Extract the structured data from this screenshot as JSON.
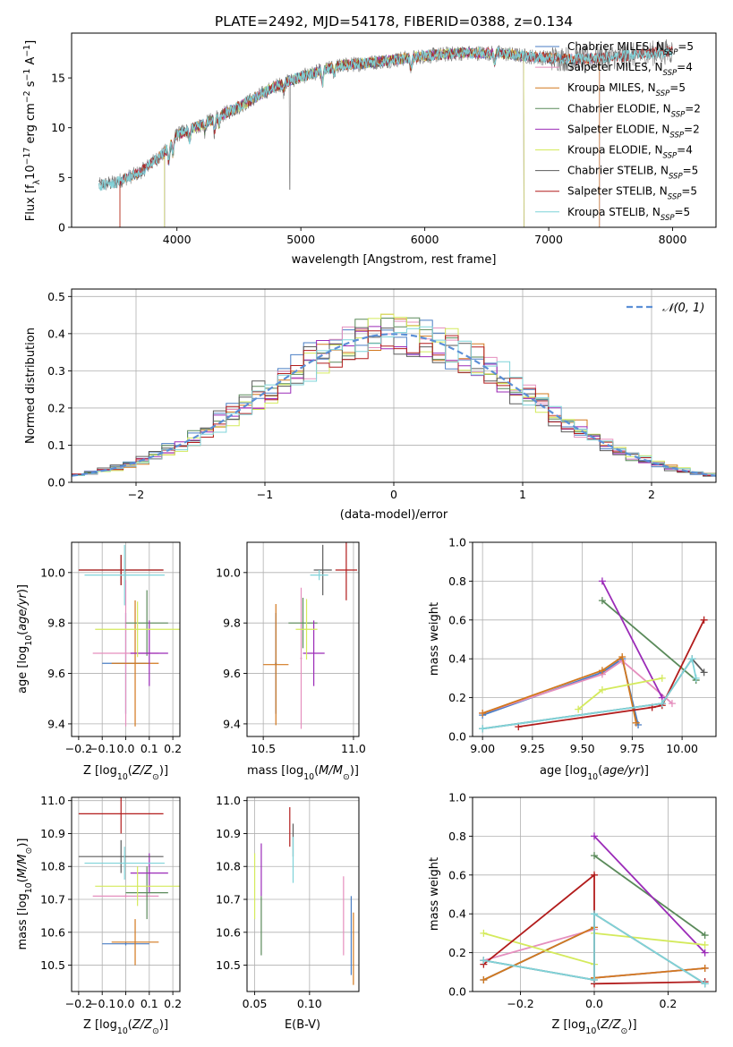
{
  "colors": {
    "Chabrier MILES": "#4a7ec4",
    "Salpeter MILES": "#e58fbe",
    "Kroupa MILES": "#d2781e",
    "Chabrier ELODIE": "#5a8a5a",
    "Salpeter ELODIE": "#9b2bb8",
    "Kroupa ELODIE": "#d4ea5c",
    "Chabrier STELIB": "#5b5b5b",
    "Salpeter STELIB": "#b21c1c",
    "Kroupa STELIB": "#7fd3d9",
    "normal": "#5b8fd6",
    "spectrum_gray": "#7a7a7a"
  },
  "chart_data": [
    {
      "id": "spectrum",
      "type": "line",
      "title": "PLATE=2492, MJD=54178, FIBERID=0388, z=0.134",
      "xlabel": "wavelength [Angstrom, rest frame]",
      "ylabel_parts": [
        "Flux [f",
        "λ",
        "10",
        "−17",
        " erg cm",
        "−2",
        " s",
        "−1",
        " A",
        "−1",
        "]"
      ],
      "xlim": [
        3150,
        8350
      ],
      "ylim": [
        0,
        19.5
      ],
      "xticks": [
        4000,
        5000,
        6000,
        7000,
        8000
      ],
      "yticks": [
        0,
        5,
        10,
        15
      ],
      "grid": false,
      "legend_position": "top-right",
      "legend": [
        {
          "label": "Chabrier MILES, N",
          "sub": "SSP",
          "suffix": "=5"
        },
        {
          "label": "Salpeter MILES, N",
          "sub": "SSP",
          "suffix": "=4"
        },
        {
          "label": "Kroupa MILES, N",
          "sub": "SSP",
          "suffix": "=5"
        },
        {
          "label": "Chabrier ELODIE, N",
          "sub": "SSP",
          "suffix": "=2"
        },
        {
          "label": "Salpeter ELODIE, N",
          "sub": "SSP",
          "suffix": "=2"
        },
        {
          "label": "Kroupa ELODIE, N",
          "sub": "SSP",
          "suffix": "=4"
        },
        {
          "label": "Chabrier STELIB, N",
          "sub": "SSP",
          "suffix": "=5"
        },
        {
          "label": "Salpeter STELIB, N",
          "sub": "SSP",
          "suffix": "=5"
        },
        {
          "label": "Kroupa STELIB, N",
          "sub": "SSP",
          "suffix": "=5"
        }
      ],
      "continuum_knots": {
        "x": [
          3370,
          3500,
          3700,
          3900,
          4000,
          4200,
          4500,
          4800,
          5000,
          5300,
          5600,
          6000,
          6300,
          6600,
          6800,
          7000,
          7200,
          7400,
          7700,
          8000
        ],
        "y": [
          4.2,
          4.5,
          5.5,
          7.5,
          9.3,
          10.3,
          12.1,
          14.2,
          15.1,
          16.2,
          16.6,
          17.2,
          17.5,
          17.5,
          17.2,
          17.0,
          16.9,
          17.0,
          17.3,
          17.7
        ]
      },
      "data_range": [
        3370,
        8000
      ],
      "model_coverage": {
        "Chabrier MILES": [
          3540,
          7410
        ],
        "Salpeter MILES": [
          3540,
          7410
        ],
        "Kroupa MILES": [
          3540,
          7410
        ],
        "Chabrier ELODIE": [
          3900,
          6800
        ],
        "Salpeter ELODIE": [
          3900,
          6800
        ],
        "Kroupa ELODIE": [
          3900,
          6800
        ],
        "Chabrier STELIB": [
          3370,
          8000
        ],
        "Salpeter STELIB": [
          3540,
          8000
        ],
        "Kroupa STELIB": [
          3370,
          8000
        ]
      }
    },
    {
      "id": "residuals",
      "type": "step",
      "xlabel": "(data-model)/error",
      "ylabel": "Normed distribution",
      "xlim": [
        -2.5,
        2.5
      ],
      "ylim": [
        0,
        0.52
      ],
      "xticks": [
        -2,
        -1,
        0,
        1,
        2
      ],
      "yticks": [
        0.0,
        0.1,
        0.2,
        0.3,
        0.4,
        0.5
      ],
      "grid": true,
      "legend_position": "top-right",
      "legend": [
        {
          "label": "𝒩(0, 1)"
        }
      ],
      "bin_width": 0.1
    },
    {
      "id": "age_vs_Z",
      "type": "errorbar",
      "xlabel": "Z [log10(Z/Z⊙)]",
      "ylabel": "age  [log10(age/yr)]",
      "xlim": [
        -0.23,
        0.23
      ],
      "ylim": [
        9.35,
        10.12
      ],
      "xticks": [
        -0.2,
        -0.1,
        0.0,
        0.1,
        0.2
      ],
      "yticks": [
        9.4,
        9.6,
        9.8,
        10.0
      ],
      "grid": true,
      "points": [
        {
          "model": "Chabrier MILES",
          "x": 0.0,
          "y": 9.64,
          "xerr": 0.1,
          "yerr": 0.2
        },
        {
          "model": "Salpeter MILES",
          "x": 0.0,
          "y": 9.68,
          "xerr": 0.14,
          "yerr": 0.29
        },
        {
          "model": "Kroupa MILES",
          "x": 0.04,
          "y": 9.64,
          "xerr": 0.1,
          "yerr": 0.25
        },
        {
          "model": "Chabrier ELODIE",
          "x": 0.09,
          "y": 9.8,
          "xerr": 0.09,
          "yerr": 0.13
        },
        {
          "model": "Salpeter ELODIE",
          "x": 0.1,
          "y": 9.68,
          "xerr": 0.08,
          "yerr": 0.13
        },
        {
          "model": "Kroupa ELODIE",
          "x": 0.05,
          "y": 9.775,
          "xerr": 0.18,
          "yerr": 0.11
        },
        {
          "model": "Chabrier STELIB",
          "x": -0.02,
          "y": 10.01,
          "xerr": 0.18,
          "yerr": 0.06
        },
        {
          "model": "Salpeter STELIB",
          "x": -0.02,
          "y": 10.01,
          "xerr": 0.18,
          "yerr": 0.06
        },
        {
          "model": "Kroupa STELIB",
          "x": -0.005,
          "y": 9.99,
          "xerr": 0.17,
          "yerr": 0.12
        }
      ]
    },
    {
      "id": "age_vs_mass",
      "type": "errorbar",
      "xlabel": "mass [log10(M/M⊙)]",
      "xlim": [
        10.41,
        11.03
      ],
      "ylim": [
        9.35,
        10.12
      ],
      "xticks": [
        10.5,
        11.0
      ],
      "yticks": [
        9.4,
        9.6,
        9.8,
        10.0
      ],
      "grid": true,
      "points": [
        {
          "model": "Chabrier MILES",
          "x": 10.57,
          "y": 9.64,
          "xerr": 0.005,
          "yerr": 0.2
        },
        {
          "model": "Salpeter MILES",
          "x": 10.71,
          "y": 9.66,
          "xerr": 0.005,
          "yerr": 0.28
        },
        {
          "model": "Kroupa MILES",
          "x": 10.57,
          "y": 9.635,
          "xerr": 0.07,
          "yerr": 0.24
        },
        {
          "model": "Chabrier ELODIE",
          "x": 10.72,
          "y": 9.8,
          "xerr": 0.08,
          "yerr": 0.1
        },
        {
          "model": "Salpeter ELODIE",
          "x": 10.78,
          "y": 9.68,
          "xerr": 0.06,
          "yerr": 0.13
        },
        {
          "model": "Kroupa ELODIE",
          "x": 10.74,
          "y": 9.775,
          "xerr": 0.06,
          "yerr": 0.12
        },
        {
          "model": "Chabrier STELIB",
          "x": 10.83,
          "y": 10.01,
          "xerr": 0.05,
          "yerr": 0.1
        },
        {
          "model": "Salpeter STELIB",
          "x": 10.96,
          "y": 10.01,
          "xerr": 0.06,
          "yerr": 0.12
        },
        {
          "model": "Kroupa STELIB",
          "x": 10.81,
          "y": 9.99,
          "xerr": 0.05,
          "yerr": 0.02
        }
      ]
    },
    {
      "id": "weight_vs_age",
      "type": "line-marker",
      "xlabel": "age  [log10(age/yr)]",
      "ylabel": "mass weight",
      "xlim": [
        8.95,
        10.17
      ],
      "ylim": [
        0,
        1.0
      ],
      "xticks": [
        9.0,
        9.25,
        9.5,
        9.75,
        10.0
      ],
      "yticks": [
        0.0,
        0.2,
        0.4,
        0.6,
        0.8,
        1.0
      ],
      "grid": true,
      "series": [
        {
          "model": "Chabrier MILES",
          "x": [
            9.0,
            9.6,
            9.7,
            9.78
          ],
          "y": [
            0.11,
            0.33,
            0.4,
            0.06
          ]
        },
        {
          "model": "Salpeter MILES",
          "x": [
            9.0,
            9.6,
            9.7,
            9.95
          ],
          "y": [
            0.12,
            0.32,
            0.39,
            0.17
          ]
        },
        {
          "model": "Kroupa MILES",
          "x": [
            9.0,
            9.6,
            9.7,
            9.77
          ],
          "y": [
            0.12,
            0.34,
            0.41,
            0.07
          ]
        },
        {
          "model": "Chabrier ELODIE",
          "x": [
            9.6,
            10.07
          ],
          "y": [
            0.7,
            0.29
          ]
        },
        {
          "model": "Salpeter ELODIE",
          "x": [
            9.6,
            9.9
          ],
          "y": [
            0.8,
            0.2
          ]
        },
        {
          "model": "Kroupa ELODIE",
          "x": [
            9.48,
            9.6,
            9.9
          ],
          "y": [
            0.14,
            0.24,
            0.3
          ]
        },
        {
          "model": "Chabrier STELIB",
          "x": [
            9.0,
            9.9,
            10.05,
            10.11
          ],
          "y": [
            0.04,
            0.17,
            0.4,
            0.33
          ]
        },
        {
          "model": "Salpeter STELIB",
          "x": [
            9.18,
            9.85,
            9.9,
            10.11
          ],
          "y": [
            0.05,
            0.15,
            0.16,
            0.6
          ]
        },
        {
          "model": "Kroupa STELIB",
          "x": [
            9.0,
            9.9,
            10.05,
            10.07
          ],
          "y": [
            0.04,
            0.17,
            0.4,
            0.3
          ]
        }
      ]
    },
    {
      "id": "mass_vs_Z",
      "type": "errorbar",
      "xlabel": "Z [log10(Z/Z⊙)]",
      "ylabel": "mass [log10(M/M⊙)]",
      "xlim": [
        -0.23,
        0.23
      ],
      "ylim": [
        10.42,
        11.01
      ],
      "xticks": [
        -0.2,
        -0.1,
        0.0,
        0.1,
        0.2
      ],
      "yticks": [
        10.5,
        10.6,
        10.7,
        10.8,
        10.9,
        11.0
      ],
      "grid": true,
      "points": [
        {
          "model": "Chabrier MILES",
          "x": 0.0,
          "y": 10.565,
          "xerr": 0.1,
          "yerr": 0.005
        },
        {
          "model": "Salpeter MILES",
          "x": 0.0,
          "y": 10.71,
          "xerr": 0.14,
          "yerr": 0.005
        },
        {
          "model": "Kroupa MILES",
          "x": 0.04,
          "y": 10.57,
          "xerr": 0.1,
          "yerr": 0.07
        },
        {
          "model": "Chabrier ELODIE",
          "x": 0.09,
          "y": 10.72,
          "xerr": 0.09,
          "yerr": 0.08
        },
        {
          "model": "Salpeter ELODIE",
          "x": 0.1,
          "y": 10.78,
          "xerr": 0.08,
          "yerr": 0.06
        },
        {
          "model": "Kroupa ELODIE",
          "x": 0.05,
          "y": 10.74,
          "xerr": 0.18,
          "yerr": 0.06
        },
        {
          "model": "Chabrier STELIB",
          "x": -0.02,
          "y": 10.83,
          "xerr": 0.18,
          "yerr": 0.05
        },
        {
          "model": "Salpeter STELIB",
          "x": -0.02,
          "y": 10.96,
          "xerr": 0.18,
          "yerr": 0.06
        },
        {
          "model": "Kroupa STELIB",
          "x": -0.005,
          "y": 10.81,
          "xerr": 0.17,
          "yerr": 0.05
        }
      ]
    },
    {
      "id": "mass_vs_ebv",
      "type": "errorbar",
      "xlabel": "E(B-V)",
      "xlim": [
        0.043,
        0.145
      ],
      "ylim": [
        10.42,
        11.01
      ],
      "xticks": [
        0.05,
        0.1
      ],
      "yticks": [
        10.5,
        10.6,
        10.7,
        10.8,
        10.9,
        11.0
      ],
      "grid": true,
      "points": [
        {
          "model": "Chabrier MILES",
          "x": 0.138,
          "y": 10.59,
          "xerr": 0,
          "yerr": 0.12
        },
        {
          "model": "Salpeter MILES",
          "x": 0.131,
          "y": 10.65,
          "xerr": 0,
          "yerr": 0.12
        },
        {
          "model": "Kroupa MILES",
          "x": 0.14,
          "y": 10.55,
          "xerr": 0,
          "yerr": 0.11
        },
        {
          "model": "Chabrier ELODIE",
          "x": 0.056,
          "y": 10.62,
          "xerr": 0,
          "yerr": 0.09
        },
        {
          "model": "Salpeter ELODIE",
          "x": 0.056,
          "y": 10.79,
          "xerr": 0,
          "yerr": 0.08
        },
        {
          "model": "Kroupa ELODIE",
          "x": 0.05,
          "y": 10.74,
          "xerr": 0,
          "yerr": 0.1
        },
        {
          "model": "Chabrier STELIB",
          "x": 0.085,
          "y": 10.88,
          "xerr": 0,
          "yerr": 0.05
        },
        {
          "model": "Salpeter STELIB",
          "x": 0.082,
          "y": 10.92,
          "xerr": 0,
          "yerr": 0.06
        },
        {
          "model": "Kroupa STELIB",
          "x": 0.085,
          "y": 10.82,
          "xerr": 0,
          "yerr": 0.07
        }
      ]
    },
    {
      "id": "weight_vs_Z",
      "type": "line-marker",
      "xlabel": "Z [log10(Z/Z⊙)]",
      "ylabel": "mass weight",
      "xlim": [
        -0.33,
        0.33
      ],
      "ylim": [
        0,
        1.0
      ],
      "xticks": [
        -0.2,
        0.0,
        0.2
      ],
      "yticks": [
        0.0,
        0.2,
        0.4,
        0.6,
        0.8,
        1.0
      ],
      "grid": true,
      "series": [
        {
          "model": "Chabrier MILES",
          "x": [
            -0.3,
            0.0,
            0.0,
            0.3
          ],
          "y": [
            0.06,
            0.33,
            0.07,
            0.12
          ]
        },
        {
          "model": "Salpeter MILES",
          "x": [
            -0.3,
            0.0,
            0.0,
            0.3
          ],
          "y": [
            0.16,
            0.32,
            0.07,
            0.12
          ]
        },
        {
          "model": "Kroupa MILES",
          "x": [
            -0.3,
            0.0,
            0.0,
            0.3
          ],
          "y": [
            0.06,
            0.33,
            0.07,
            0.12
          ]
        },
        {
          "model": "Chabrier ELODIE",
          "x": [
            0.0,
            0.3
          ],
          "y": [
            0.7,
            0.29
          ]
        },
        {
          "model": "Salpeter ELODIE",
          "x": [
            0.0,
            0.3
          ],
          "y": [
            0.8,
            0.2
          ]
        },
        {
          "model": "Kroupa ELODIE",
          "x": [
            -0.3,
            0.0,
            0.0,
            0.3
          ],
          "y": [
            0.3,
            0.14,
            0.3,
            0.24
          ]
        },
        {
          "model": "Chabrier STELIB",
          "x": [
            -0.3,
            0.0,
            0.0,
            0.3
          ],
          "y": [
            0.16,
            0.06,
            0.4,
            0.04
          ]
        },
        {
          "model": "Salpeter STELIB",
          "x": [
            -0.3,
            0.0,
            0.0,
            0.3
          ],
          "y": [
            0.14,
            0.6,
            0.04,
            0.05
          ]
        },
        {
          "model": "Kroupa STELIB",
          "x": [
            -0.3,
            0.0,
            0.0,
            0.3
          ],
          "y": [
            0.16,
            0.06,
            0.4,
            0.04
          ]
        }
      ]
    }
  ]
}
